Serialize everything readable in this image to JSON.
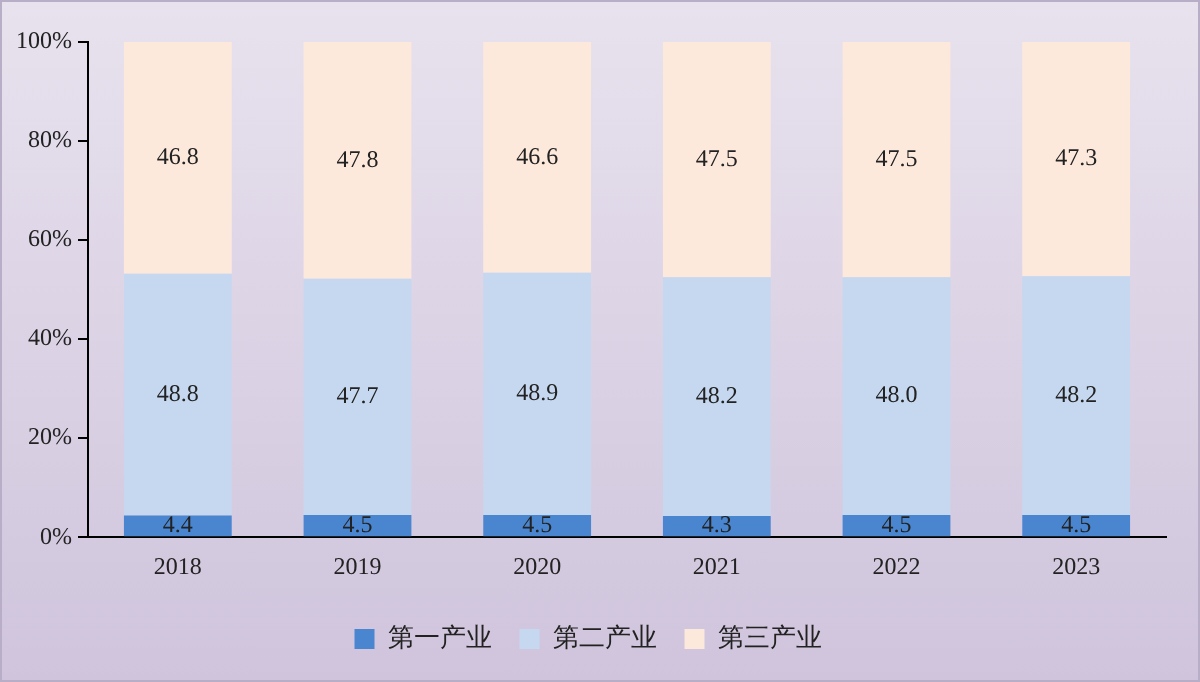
{
  "chart_data": {
    "type": "bar",
    "stacked": true,
    "categories": [
      "2018",
      "2019",
      "2020",
      "2021",
      "2022",
      "2023"
    ],
    "series": [
      {
        "name": "第一产业",
        "color": "#4a86d0",
        "values": [
          4.4,
          4.5,
          4.5,
          4.3,
          4.5,
          4.5
        ],
        "value_labels": [
          "4.4",
          "4.5",
          "4.5",
          "4.3",
          "4.5",
          "4.5"
        ]
      },
      {
        "name": "第二产业",
        "color": "#c6d8f0",
        "values": [
          48.8,
          47.7,
          48.9,
          48.2,
          48.0,
          48.2
        ],
        "value_labels": [
          "48.8",
          "47.7",
          "48.9",
          "48.2",
          "48.0",
          "48.2"
        ]
      },
      {
        "name": "第三产业",
        "color": "#fde9dc",
        "values": [
          46.8,
          47.8,
          46.6,
          47.5,
          47.5,
          47.3
        ],
        "value_labels": [
          "46.8",
          "47.8",
          "46.6",
          "47.5",
          "47.5",
          "47.3"
        ]
      }
    ],
    "ylim": [
      0,
      100
    ],
    "yticks": [
      {
        "value": 0,
        "label": "0%"
      },
      {
        "value": 20,
        "label": "20%"
      },
      {
        "value": 40,
        "label": "40%"
      },
      {
        "value": 60,
        "label": "60%"
      },
      {
        "value": 80,
        "label": "80%"
      },
      {
        "value": 100,
        "label": "100%"
      }
    ],
    "grid": false,
    "legend": "bottom"
  }
}
